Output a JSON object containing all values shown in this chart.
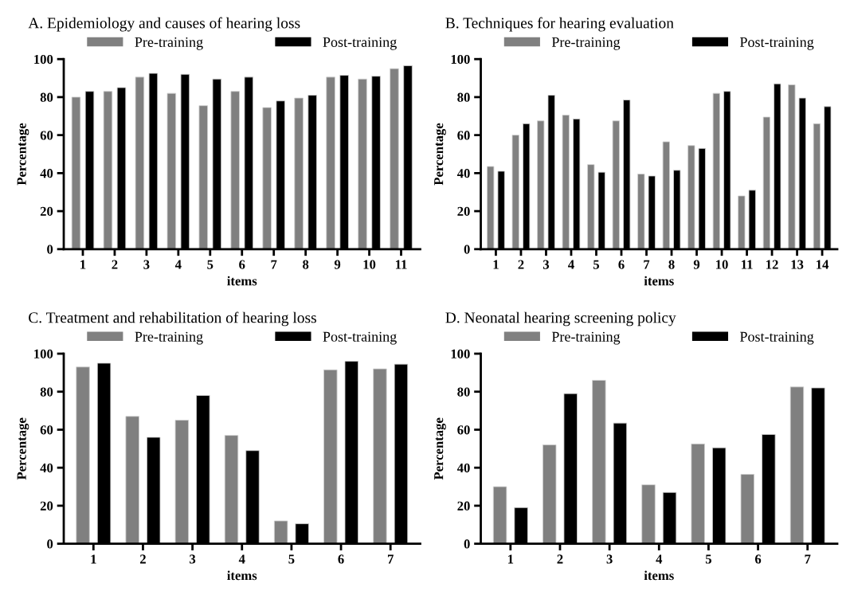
{
  "chart_data": [
    {
      "type": "bar",
      "title": "A. Epidemiology and causes of hearing loss",
      "xlabel": "items",
      "ylabel": "Percentage",
      "categories": [
        "1",
        "2",
        "3",
        "4",
        "5",
        "6",
        "7",
        "8",
        "9",
        "10",
        "11"
      ],
      "series": [
        {
          "name": "Pre-training",
          "color": "#808080",
          "values": [
            80,
            83,
            90.5,
            82,
            75.5,
            83,
            74.5,
            79.5,
            90.5,
            89.5,
            95
          ]
        },
        {
          "name": "Post-training",
          "color": "#000000",
          "values": [
            83,
            85,
            92.5,
            92,
            89.5,
            90.5,
            78,
            81,
            91.5,
            91,
            96.5
          ]
        }
      ],
      "ylim": [
        0,
        100
      ],
      "yticks": [
        0,
        20,
        40,
        60,
        80,
        100
      ],
      "legend": "top",
      "grid": false
    },
    {
      "type": "bar",
      "title": "B. Techniques for hearing evaluation",
      "xlabel": "items",
      "ylabel": "Percentage",
      "categories": [
        "1",
        "2",
        "3",
        "4",
        "5",
        "6",
        "7",
        "8",
        "9",
        "10",
        "11",
        "12",
        "13",
        "14"
      ],
      "series": [
        {
          "name": "Pre-training",
          "color": "#808080",
          "values": [
            43.5,
            60,
            67.5,
            70.5,
            44.5,
            67.5,
            39.5,
            56.5,
            54.5,
            82,
            28,
            69.5,
            86.5,
            66
          ]
        },
        {
          "name": "Post-training",
          "color": "#000000",
          "values": [
            41,
            66,
            81,
            68.5,
            40.5,
            78.5,
            38.5,
            41.5,
            53,
            83,
            31,
            87,
            79.5,
            75
          ]
        }
      ],
      "ylim": [
        0,
        100
      ],
      "yticks": [
        0,
        20,
        40,
        60,
        80,
        100
      ],
      "legend": "top",
      "grid": false
    },
    {
      "type": "bar",
      "title": "C. Treatment and rehabilitation of hearing loss",
      "xlabel": "items",
      "ylabel": "Percentage",
      "categories": [
        "1",
        "2",
        "3",
        "4",
        "5",
        "6",
        "7"
      ],
      "series": [
        {
          "name": "Pre-training",
          "color": "#808080",
          "values": [
            93,
            67,
            65,
            57,
            12,
            91.5,
            92
          ]
        },
        {
          "name": "Post-training",
          "color": "#000000",
          "values": [
            95,
            56,
            78,
            49,
            10.5,
            96,
            94.5
          ]
        }
      ],
      "ylim": [
        0,
        100
      ],
      "yticks": [
        0,
        20,
        40,
        60,
        80,
        100
      ],
      "legend": "top",
      "grid": false
    },
    {
      "type": "bar",
      "title": "D. Neonatal hearing screening policy",
      "xlabel": "items",
      "ylabel": "Percentage",
      "categories": [
        "1",
        "2",
        "3",
        "4",
        "5",
        "6",
        "7"
      ],
      "series": [
        {
          "name": "Pre-training",
          "color": "#808080",
          "values": [
            30,
            52,
            86,
            31,
            52.5,
            36.5,
            82.5
          ]
        },
        {
          "name": "Post-training",
          "color": "#000000",
          "values": [
            19,
            79,
            63.5,
            27,
            50.5,
            57.5,
            82
          ]
        }
      ],
      "ylim": [
        0,
        100
      ],
      "yticks": [
        0,
        20,
        40,
        60,
        80,
        100
      ],
      "legend": "top",
      "grid": false
    }
  ]
}
